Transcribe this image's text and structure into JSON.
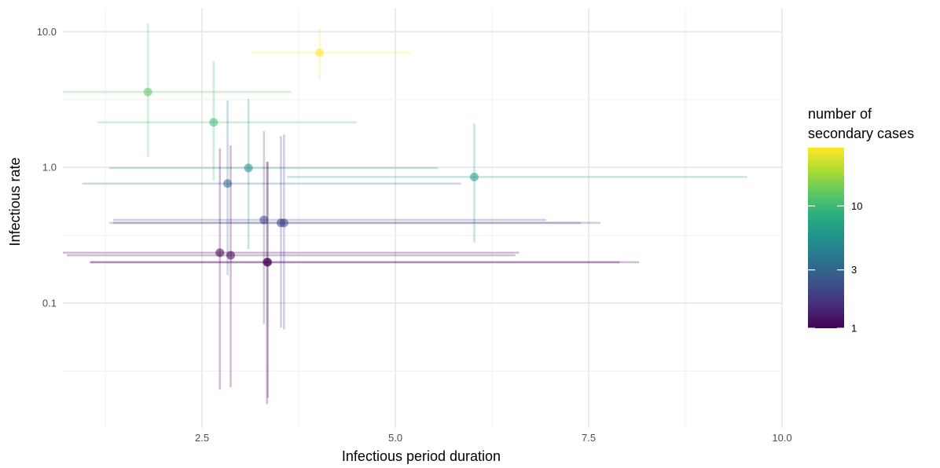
{
  "chart_data": {
    "type": "scatter",
    "title": "",
    "xlabel": "Infectious period duration",
    "ylabel": "Infectious rate",
    "x_scale": "linear",
    "y_scale": "log10",
    "xlim": [
      0.7,
      10.0
    ],
    "ylim": [
      0.012,
      15
    ],
    "x_ticks": [
      2.5,
      5.0,
      7.5,
      10.0
    ],
    "x_tick_labels": [
      "2.5",
      "5.0",
      "7.5",
      "10.0"
    ],
    "y_ticks": [
      0.1,
      1.0,
      10.0
    ],
    "y_tick_labels": [
      "0.1",
      "1.0",
      "10.0"
    ],
    "grid": true,
    "legend": {
      "title": "number of secondary cases",
      "title_lines": [
        "number of",
        "secondary cases"
      ],
      "scale": "log10",
      "range": [
        1,
        30
      ],
      "ticks": [
        1,
        3,
        10
      ],
      "tick_labels": [
        "1",
        "3",
        "10"
      ],
      "position": "right",
      "colormap": "viridis"
    },
    "points": [
      {
        "x": 4.02,
        "y": 7.0,
        "x_low": 3.15,
        "x_high": 5.2,
        "y_low": 4.4,
        "y_high": 10.5,
        "cases": 30
      },
      {
        "x": 1.8,
        "y": 3.6,
        "x_low": 0.7,
        "x_high": 3.65,
        "y_low": 1.2,
        "y_high": 11.5,
        "cases": 12
      },
      {
        "x": 2.65,
        "y": 2.15,
        "x_low": 1.15,
        "x_high": 4.5,
        "y_low": 0.8,
        "y_high": 6.1,
        "cases": 10
      },
      {
        "x": 3.1,
        "y": 0.99,
        "x_low": 1.3,
        "x_high": 5.55,
        "y_low": 0.25,
        "y_high": 3.2,
        "cases": 5
      },
      {
        "x": 6.02,
        "y": 0.85,
        "x_low": 3.6,
        "x_high": 9.55,
        "y_low": 0.28,
        "y_high": 2.1,
        "cases": 6
      },
      {
        "x": 2.83,
        "y": 0.76,
        "x_low": 0.95,
        "x_high": 5.85,
        "y_low": 0.16,
        "y_high": 3.1,
        "cases": 3
      },
      {
        "x": 3.3,
        "y": 0.41,
        "x_low": 1.35,
        "x_high": 6.95,
        "y_low": 0.07,
        "y_high": 1.85,
        "cases": 2
      },
      {
        "x": 3.52,
        "y": 0.39,
        "x_low": 1.3,
        "x_high": 7.65,
        "y_low": 0.066,
        "y_high": 1.7,
        "cases": 2
      },
      {
        "x": 3.56,
        "y": 0.39,
        "x_low": 1.35,
        "x_high": 7.4,
        "y_low": 0.064,
        "y_high": 1.75,
        "cases": 2
      },
      {
        "x": 2.73,
        "y": 0.235,
        "x_low": 0.7,
        "x_high": 6.6,
        "y_low": 0.023,
        "y_high": 1.38,
        "cases": 1
      },
      {
        "x": 2.87,
        "y": 0.225,
        "x_low": 0.75,
        "x_high": 6.55,
        "y_low": 0.024,
        "y_high": 1.45,
        "cases": 1
      },
      {
        "x": 3.34,
        "y": 0.2,
        "x_low": 1.05,
        "x_high": 8.15,
        "y_low": 0.018,
        "y_high": 1.1,
        "cases": 1
      },
      {
        "x": 3.35,
        "y": 0.2,
        "x_low": 1.05,
        "x_high": 7.9,
        "y_low": 0.02,
        "y_high": 1.1,
        "cases": 1
      }
    ]
  }
}
